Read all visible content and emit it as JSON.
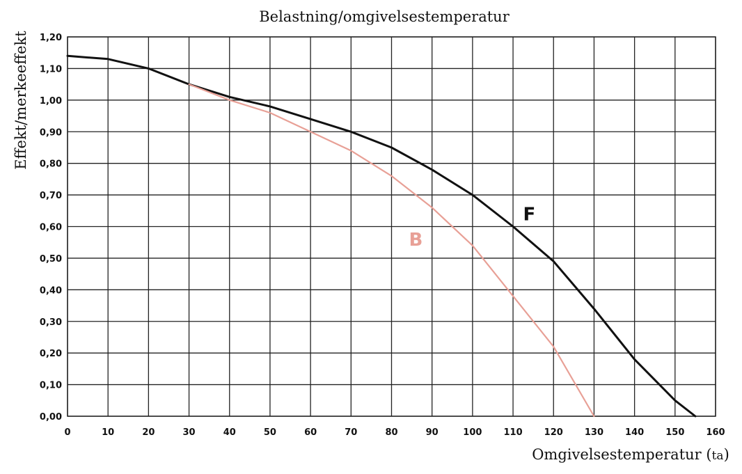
{
  "chart_data": {
    "type": "line",
    "title": "Belastning/omgivelsestemperatur",
    "xlabel": "Omgivelsestemperatur",
    "xlabel_unit": "ta",
    "ylabel": "Effekt/merkeeffekt",
    "xlim": [
      0,
      160
    ],
    "ylim": [
      0,
      1.2
    ],
    "x_ticks": [
      "0",
      "10",
      "20",
      "30",
      "40",
      "50",
      "60",
      "70",
      "80",
      "90",
      "100",
      "110",
      "120",
      "130",
      "140",
      "150",
      "160"
    ],
    "y_ticks": [
      "0,00",
      "0,10",
      "0,20",
      "0,30",
      "0,40",
      "0,50",
      "0,60",
      "0,70",
      "0,80",
      "0,90",
      "1,00",
      "1,10",
      "1,20"
    ],
    "grid": true,
    "series": [
      {
        "name": "F",
        "color": "#111111",
        "x": [
          0,
          10,
          20,
          30,
          40,
          50,
          60,
          70,
          80,
          90,
          100,
          110,
          120,
          130,
          140,
          150,
          155
        ],
        "y": [
          1.14,
          1.13,
          1.1,
          1.05,
          1.01,
          0.98,
          0.94,
          0.9,
          0.85,
          0.78,
          0.7,
          0.6,
          0.49,
          0.34,
          0.18,
          0.05,
          0.0
        ]
      },
      {
        "name": "B",
        "color": "#e8a096",
        "x": [
          30,
          40,
          50,
          60,
          70,
          80,
          90,
          100,
          110,
          120,
          130
        ],
        "y": [
          1.05,
          1.0,
          0.96,
          0.9,
          0.84,
          0.76,
          0.66,
          0.54,
          0.38,
          0.22,
          0.0
        ]
      }
    ],
    "annotations": [
      {
        "text": "F",
        "x": 114,
        "y": 0.62,
        "color": "#111111"
      },
      {
        "text": "B",
        "x": 86,
        "y": 0.54,
        "color": "#e8a096"
      }
    ]
  }
}
